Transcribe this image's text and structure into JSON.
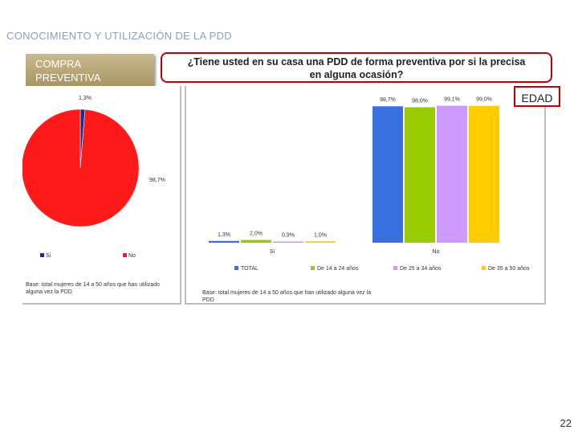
{
  "header": {
    "title": "CONOCIMIENTO Y UTILIZACIÓN DE LA PDD"
  },
  "section": {
    "label_line1": "COMPRA",
    "label_line2": "PREVENTIVA"
  },
  "question": {
    "line1": "¿Tiene usted en su casa una PDD de forma preventiva por si la precisa",
    "line2": "en alguna ocasión?"
  },
  "edad_label": "EDAD",
  "pie": {
    "base_line1": "Base: total mujeres de 14 a 50 años que han utilizado",
    "base_line2": "alguna vez la PDD"
  },
  "bars": {
    "base_line1": "Base: total mujeres de 14 a 50 años que han utilizado alguna vez la",
    "base_line2": "PDD"
  },
  "page_number": "22",
  "colors": {
    "si": "#1f2f86",
    "no": "#ff1a1a",
    "TOTAL": "#3a6fe0",
    "g1": "#99cc00",
    "g2": "#cc99ff",
    "g3": "#ffcc00"
  },
  "chart_data": [
    {
      "type": "pie",
      "slices": [
        {
          "label": "Si",
          "value": 1.3,
          "value_label": "1,3%",
          "color": "#1f2f86"
        },
        {
          "label": "No",
          "value": 98.7,
          "value_label": "98,7%",
          "color": "#ff1a1a"
        }
      ],
      "legend_placement": "bottom"
    },
    {
      "type": "bar",
      "categories": [
        "Si",
        "No"
      ],
      "series": [
        {
          "name": "TOTAL",
          "values": [
            1.3,
            98.7
          ],
          "value_labels": [
            "1,3%",
            "98,7%"
          ],
          "color": "#3a6fe0"
        },
        {
          "name": "De 14 a 24 años",
          "values": [
            2.0,
            98.0
          ],
          "value_labels": [
            "2,0%",
            "98,0%"
          ],
          "color": "#99cc00"
        },
        {
          "name": "De 25 a 34 años",
          "values": [
            0.9,
            99.1
          ],
          "value_labels": [
            "0,9%",
            "99,1%"
          ],
          "color": "#cc99ff"
        },
        {
          "name": "De 35 a 50 años",
          "values": [
            1.0,
            99.0
          ],
          "value_labels": [
            "1,0%",
            "99,0%"
          ],
          "color": "#ffcc00"
        }
      ],
      "ylim": [
        0,
        100
      ],
      "legend_placement": "bottom"
    }
  ]
}
